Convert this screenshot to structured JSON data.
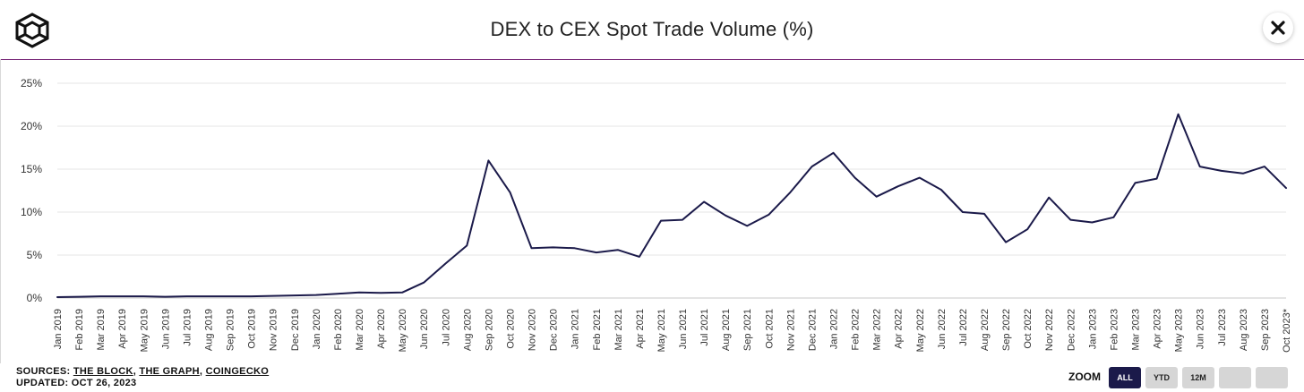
{
  "header": {
    "title": "DEX to CEX Spot Trade Volume (%)",
    "close_label": "×"
  },
  "footer": {
    "sources_label": "SOURCES:",
    "sources": [
      "THE BLOCK",
      "THE GRAPH",
      "COINGECKO"
    ],
    "sources_separator": ", ",
    "updated": "UPDATED: OCT 26, 2023"
  },
  "zoom": {
    "label": "ZOOM",
    "buttons": [
      "ALL",
      "YTD",
      "12M",
      "",
      ""
    ],
    "active": "ALL"
  },
  "colors": {
    "line": "#1b1a4a",
    "grid": "#e6e6e6",
    "header_rule": "#7a2a7a",
    "active_button": "#1b1a4a",
    "inactive_button": "#d6d6d6"
  },
  "chart_data": {
    "type": "line",
    "title": "DEX to CEX Spot Trade Volume (%)",
    "xlabel": "",
    "ylabel": "",
    "ylim": [
      0,
      25
    ],
    "yticks": [
      "0%",
      "5%",
      "10%",
      "15%",
      "20%",
      "25%"
    ],
    "grid": true,
    "categories": [
      "Jan 2019",
      "Feb 2019",
      "Mar 2019",
      "Apr 2019",
      "May 2019",
      "Jun 2019",
      "Jul 2019",
      "Aug 2019",
      "Sep 2019",
      "Oct 2019",
      "Nov 2019",
      "Dec 2019",
      "Jan 2020",
      "Feb 2020",
      "Mar 2020",
      "Apr 2020",
      "May 2020",
      "Jun 2020",
      "Jul 2020",
      "Aug 2020",
      "Sep 2020",
      "Oct 2020",
      "Nov 2020",
      "Dec 2020",
      "Jan 2021",
      "Feb 2021",
      "Mar 2021",
      "Apr 2021",
      "May 2021",
      "Jun 2021",
      "Jul 2021",
      "Aug 2021",
      "Sep 2021",
      "Oct 2021",
      "Nov 2021",
      "Dec 2021",
      "Jan 2022",
      "Feb 2022",
      "Mar 2022",
      "Apr 2022",
      "May 2022",
      "Jun 2022",
      "Jul 2022",
      "Aug 2022",
      "Sep 2022",
      "Oct 2022",
      "Nov 2022",
      "Dec 2022",
      "Jan 2023",
      "Feb 2023",
      "Mar 2023",
      "Apr 2023",
      "May 2023",
      "Jun 2023",
      "Jul 2023",
      "Aug 2023",
      "Sep 2023",
      "Oct 2023*"
    ],
    "series": [
      {
        "values": [
          0.1,
          0.15,
          0.2,
          0.2,
          0.2,
          0.15,
          0.2,
          0.2,
          0.2,
          0.2,
          0.25,
          0.3,
          0.35,
          0.5,
          0.65,
          0.6,
          0.65,
          1.8,
          4.0,
          6.1,
          16.0,
          12.3,
          5.8,
          5.9,
          5.8,
          5.3,
          5.6,
          4.8,
          9.0,
          9.1,
          11.2,
          9.6,
          8.4,
          9.7,
          12.3,
          15.3,
          16.9,
          14.0,
          11.8,
          13.0,
          14.0,
          12.6,
          10.0,
          9.8,
          6.5,
          8.0,
          11.7,
          9.1,
          8.8,
          9.4,
          13.4,
          13.9,
          21.4,
          15.3,
          14.8,
          14.5,
          15.3,
          12.8
        ]
      }
    ]
  }
}
